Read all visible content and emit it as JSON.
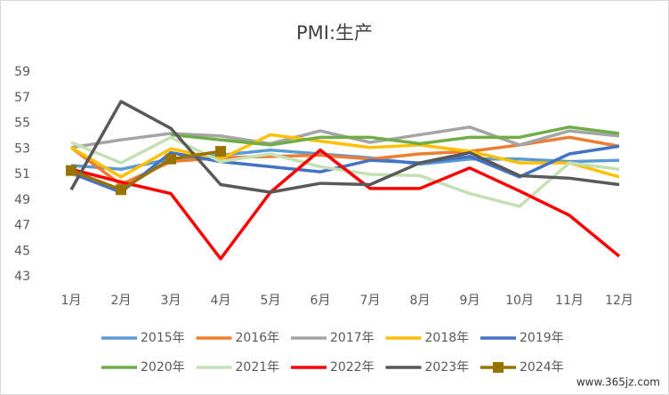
{
  "chart_data": {
    "type": "line",
    "title": "PMI:生产",
    "categories": [
      "1月",
      "2月",
      "3月",
      "4月",
      "5月",
      "6月",
      "7月",
      "8月",
      "9月",
      "10月",
      "11月",
      "12月"
    ],
    "ylim": [
      43,
      59
    ],
    "yticks": [
      43,
      45,
      47,
      49,
      51,
      53,
      55,
      57,
      59
    ],
    "grid": false,
    "series": [
      {
        "name": "2015年",
        "color": "#5b9bd5",
        "values": [
          51.7,
          51.4,
          52.2,
          52.5,
          52.9,
          52.6,
          52.3,
          51.8,
          52.2,
          52.2,
          52.0,
          52.1
        ]
      },
      {
        "name": "2016年",
        "color": "#ed7d31",
        "values": [
          53.1,
          50.2,
          52.0,
          52.3,
          52.4,
          52.5,
          52.2,
          52.6,
          52.8,
          53.3,
          53.9,
          53.2
        ]
      },
      {
        "name": "2017年",
        "color": "#a5a5a5",
        "values": [
          53.1,
          53.7,
          54.2,
          54.0,
          53.4,
          54.4,
          53.5,
          54.1,
          54.7,
          53.3,
          54.4,
          54.0
        ]
      },
      {
        "name": "2018年",
        "color": "#ffc000",
        "values": [
          53.1,
          50.8,
          53.0,
          52.2,
          54.1,
          53.6,
          53.1,
          53.3,
          52.8,
          51.9,
          51.9,
          50.8
        ]
      },
      {
        "name": "2019年",
        "color": "#4472c4",
        "values": [
          51.1,
          49.6,
          52.7,
          52.0,
          51.6,
          51.2,
          52.1,
          51.9,
          52.4,
          50.8,
          52.6,
          53.2
        ]
      },
      {
        "name": "2020年",
        "color": "#70ad47",
        "values": [
          null,
          null,
          54.1,
          53.7,
          53.3,
          53.9,
          53.9,
          53.4,
          53.9,
          53.9,
          54.7,
          54.2
        ]
      },
      {
        "name": "2021年",
        "color": "#c5e0b4",
        "values": [
          53.5,
          51.9,
          53.9,
          52.0,
          52.6,
          51.6,
          51.0,
          50.9,
          49.5,
          48.5,
          51.9,
          51.4
        ]
      },
      {
        "name": "2022年",
        "color": "#ff0000",
        "values": [
          51.4,
          50.4,
          49.5,
          44.4,
          49.6,
          52.9,
          49.9,
          49.9,
          51.5,
          49.7,
          47.8,
          44.6
        ]
      },
      {
        "name": "2023年",
        "color": "#595959",
        "values": [
          49.8,
          56.7,
          54.6,
          50.2,
          49.6,
          50.3,
          50.2,
          51.9,
          52.7,
          50.9,
          50.7,
          50.2
        ]
      },
      {
        "name": "2024年",
        "color": "#997300",
        "marker": "square",
        "values": [
          51.3,
          49.8,
          52.2,
          52.8,
          null,
          null,
          null,
          null,
          null,
          null,
          null,
          null
        ]
      }
    ]
  },
  "watermark": "www.365jz.com"
}
